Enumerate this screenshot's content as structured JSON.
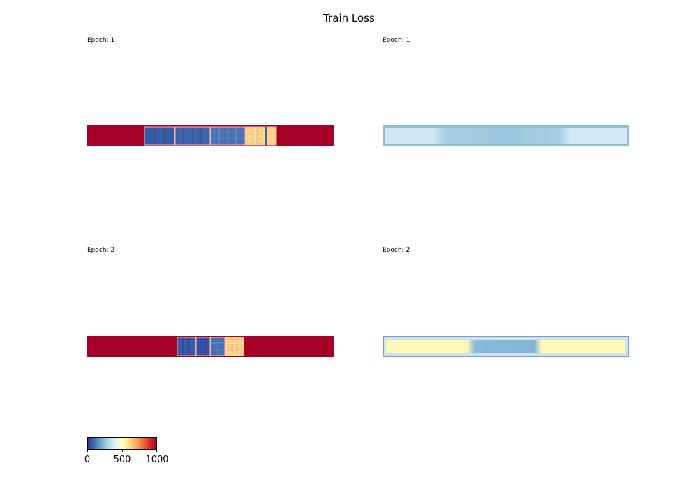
{
  "title": "Train Loss",
  "panels": [
    {
      "label": "Epoch: 1"
    },
    {
      "label": "Epoch: 1"
    },
    {
      "label": "Epoch: 2"
    },
    {
      "label": "Epoch: 2"
    }
  ],
  "colorbar": {
    "colormap": "RdYlBu_r",
    "range": [
      0,
      1000
    ],
    "ticks": [
      "0",
      "500",
      "1000"
    ]
  },
  "chart_data": [
    {
      "type": "heatmap",
      "title": "Epoch: 1",
      "colormap": "RdYlBu_r",
      "value_range": [
        0,
        1000
      ],
      "background_value": 1000,
      "blocks": [
        {
          "value": 80
        },
        {
          "value": 100
        },
        {
          "value": 140
        },
        {
          "value": 560
        }
      ]
    },
    {
      "type": "heatmap",
      "title": "Epoch: 1",
      "colormap": "Blues-like",
      "description_values": [
        0.15,
        0.3,
        0.35,
        0.3,
        0.15
      ]
    },
    {
      "type": "heatmap",
      "title": "Epoch: 2",
      "colormap": "RdYlBu_r",
      "value_range": [
        0,
        1000
      ],
      "background_value": 1000,
      "blocks": [
        {
          "value": 90
        },
        {
          "value": 70
        },
        {
          "value": 120
        },
        {
          "value": 560
        }
      ]
    },
    {
      "type": "heatmap",
      "title": "Epoch: 2",
      "colormap": "YlBu-like",
      "description_values": [
        0.95,
        0.4,
        0.95
      ]
    }
  ]
}
